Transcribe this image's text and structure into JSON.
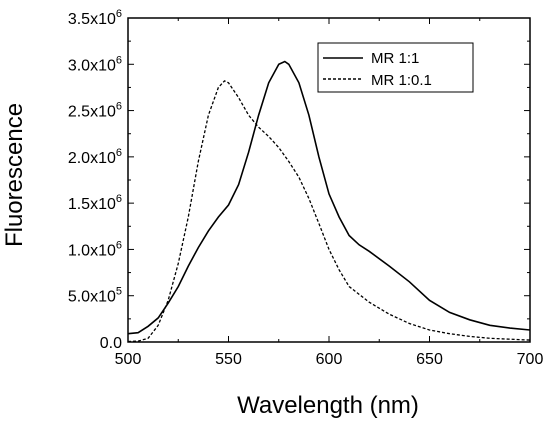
{
  "chart_data": {
    "type": "line",
    "xlabel": "Wavelength (nm)",
    "ylabel": "Fluorescence",
    "xlim": [
      500,
      700
    ],
    "ylim": [
      0,
      3500000
    ],
    "x_ticks": [
      500,
      550,
      600,
      650,
      700
    ],
    "x_tick_labels": [
      "500",
      "550",
      "600",
      "650",
      "700"
    ],
    "y_ticks": [
      0,
      500000,
      1000000,
      1500000,
      2000000,
      2500000,
      3000000,
      3500000
    ],
    "y_tick_labels": [
      {
        "mantissa": "0.0",
        "exp": ""
      },
      {
        "mantissa": "5.0x10",
        "exp": "5"
      },
      {
        "mantissa": "1.0x10",
        "exp": "6"
      },
      {
        "mantissa": "1.5x10",
        "exp": "6"
      },
      {
        "mantissa": "2.0x10",
        "exp": "6"
      },
      {
        "mantissa": "2.5x10",
        "exp": "6"
      },
      {
        "mantissa": "3.0x10",
        "exp": "6"
      },
      {
        "mantissa": "3.5x10",
        "exp": "6"
      }
    ],
    "grid": false,
    "legend_position": "top-right",
    "series": [
      {
        "name": "MR 1:1",
        "style": "solid",
        "color": "#000000",
        "x": [
          500,
          505,
          510,
          515,
          520,
          525,
          530,
          535,
          540,
          545,
          550,
          555,
          560,
          565,
          570,
          575,
          578,
          580,
          585,
          590,
          595,
          600,
          605,
          610,
          615,
          620,
          630,
          640,
          650,
          660,
          670,
          680,
          690,
          700
        ],
        "y": [
          90000,
          100000,
          170000,
          260000,
          420000,
          600000,
          820000,
          1020000,
          1200000,
          1350000,
          1480000,
          1700000,
          2050000,
          2450000,
          2800000,
          3000000,
          3030000,
          3000000,
          2800000,
          2450000,
          2000000,
          1600000,
          1350000,
          1150000,
          1050000,
          980000,
          820000,
          650000,
          450000,
          320000,
          240000,
          180000,
          150000,
          130000
        ]
      },
      {
        "name": "MR 1:0.1",
        "style": "dashed",
        "color": "#000000",
        "x": [
          500,
          505,
          510,
          515,
          520,
          525,
          530,
          535,
          540,
          545,
          548,
          550,
          555,
          560,
          565,
          570,
          575,
          580,
          585,
          590,
          595,
          600,
          605,
          610,
          620,
          630,
          640,
          650,
          660,
          670,
          680,
          690,
          700
        ],
        "y": [
          5000,
          10000,
          40000,
          180000,
          450000,
          850000,
          1350000,
          1950000,
          2450000,
          2750000,
          2820000,
          2800000,
          2640000,
          2450000,
          2320000,
          2220000,
          2100000,
          1950000,
          1780000,
          1550000,
          1280000,
          1000000,
          780000,
          600000,
          430000,
          300000,
          200000,
          130000,
          90000,
          60000,
          40000,
          30000,
          20000
        ]
      }
    ]
  }
}
